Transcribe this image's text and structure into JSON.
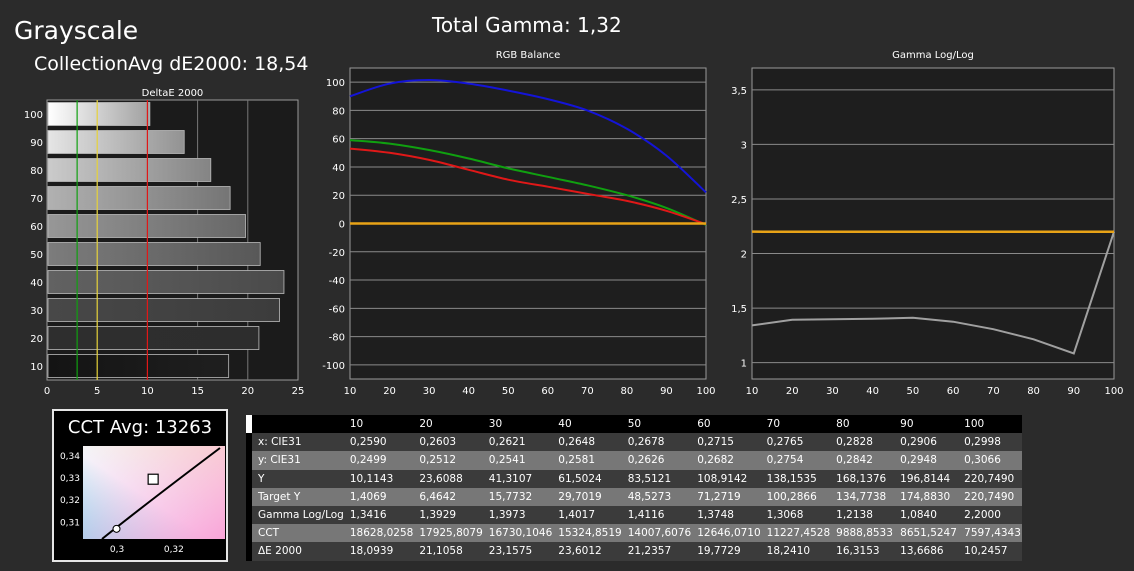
{
  "header": {
    "title": "Grayscale",
    "collection_avg": "CollectionAvg dE2000: 18,54",
    "total_gamma": "Total Gamma: 1,32"
  },
  "colors": {
    "red": "#e01818",
    "green": "#10a010",
    "blue": "#1414d8",
    "orange": "#e8a317",
    "gray_line": "#a0a0a0"
  },
  "chart_data": [
    {
      "type": "bar",
      "orientation": "horizontal",
      "title": "DeltaE 2000",
      "categories": [
        "100",
        "90",
        "80",
        "70",
        "60",
        "50",
        "40",
        "30",
        "20",
        "10"
      ],
      "values": [
        10.2457,
        13.6686,
        16.3153,
        18.241,
        19.7729,
        21.2357,
        23.6012,
        23.1575,
        21.1058,
        18.0939
      ],
      "xlim": [
        0,
        25
      ],
      "x_ticks": [
        "0",
        "5",
        "10",
        "15",
        "20",
        "25"
      ],
      "reference_lines": [
        3,
        5,
        10
      ],
      "grid": true
    },
    {
      "type": "line",
      "title": "RGB Balance",
      "x": [
        10,
        20,
        30,
        40,
        50,
        60,
        70,
        80,
        90,
        100
      ],
      "xlim": [
        10,
        100
      ],
      "ylim": [
        -110,
        110
      ],
      "x_ticks": [
        "10",
        "20",
        "30",
        "40",
        "50",
        "60",
        "70",
        "80",
        "90",
        "100"
      ],
      "y_ticks": [
        "100",
        "80",
        "60",
        "40",
        "20",
        "0",
        "-20",
        "-40",
        "-60",
        "-80",
        "-100"
      ],
      "series": [
        {
          "color": "blue",
          "values": [
            90,
            99,
            101.5,
            99,
            94,
            88,
            80,
            67,
            48,
            22
          ]
        },
        {
          "color": "green",
          "values": [
            59,
            56.5,
            52,
            46,
            39,
            33,
            27,
            20,
            11,
            -1
          ]
        },
        {
          "color": "red",
          "values": [
            53,
            50,
            45,
            38,
            31,
            26,
            21,
            16,
            9,
            -0.5
          ]
        },
        {
          "color": "orange",
          "values": [
            0,
            0,
            0,
            0,
            0,
            0,
            0,
            0,
            0,
            0
          ]
        }
      ],
      "grid": true
    },
    {
      "type": "line",
      "title": "Gamma Log/Log",
      "x": [
        10,
        20,
        30,
        40,
        50,
        60,
        70,
        80,
        90,
        100
      ],
      "xlim": [
        10,
        100
      ],
      "ylim": [
        0.85,
        3.7
      ],
      "x_ticks": [
        "10",
        "20",
        "30",
        "40",
        "50",
        "60",
        "70",
        "80",
        "90",
        "100"
      ],
      "y_ticks": [
        "3,5",
        "3",
        "2,5",
        "2",
        "1,5",
        "1"
      ],
      "series": [
        {
          "color": "gray_line",
          "values": [
            1.3416,
            1.3929,
            1.3973,
            1.4017,
            1.4116,
            1.3748,
            1.3068,
            1.2138,
            1.084,
            2.2
          ]
        },
        {
          "color": "orange",
          "values": [
            2.2,
            2.2,
            2.2,
            2.2,
            2.2,
            2.2,
            2.2,
            2.2,
            2.2,
            2.2
          ]
        }
      ],
      "grid": true
    },
    {
      "type": "scatter",
      "title": "CCT Avg: 13263",
      "xlim": [
        0.288,
        0.338
      ],
      "ylim": [
        0.302,
        0.344
      ],
      "x_ticks": [
        "0,3",
        "0,32"
      ],
      "y_ticks": [
        "0,34",
        "0,33",
        "0,32",
        "0,31"
      ],
      "target_point": {
        "x": 0.3127,
        "y": 0.329
      },
      "measured_point": {
        "x": 0.2998,
        "y": 0.3066
      }
    }
  ],
  "table": {
    "columns": [
      "10",
      "20",
      "30",
      "40",
      "50",
      "60",
      "70",
      "80",
      "90",
      "100"
    ],
    "rows": [
      {
        "label": "x: CIE31",
        "values": [
          "0,2590",
          "0,2603",
          "0,2621",
          "0,2648",
          "0,2678",
          "0,2715",
          "0,2765",
          "0,2828",
          "0,2906",
          "0,2998"
        ]
      },
      {
        "label": "y: CIE31",
        "values": [
          "0,2499",
          "0,2512",
          "0,2541",
          "0,2581",
          "0,2626",
          "0,2682",
          "0,2754",
          "0,2842",
          "0,2948",
          "0,3066"
        ]
      },
      {
        "label": "Y",
        "values": [
          "10,1143",
          "23,6088",
          "41,3107",
          "61,5024",
          "83,5121",
          "108,9142",
          "138,1535",
          "168,1376",
          "196,8144",
          "220,7490"
        ]
      },
      {
        "label": "Target Y",
        "values": [
          "1,4069",
          "6,4642",
          "15,7732",
          "29,7019",
          "48,5273",
          "71,2719",
          "100,2866",
          "134,7738",
          "174,8830",
          "220,7490"
        ]
      },
      {
        "label": "Gamma Log/Log",
        "values": [
          "1,3416",
          "1,3929",
          "1,3973",
          "1,4017",
          "1,4116",
          "1,3748",
          "1,3068",
          "1,2138",
          "1,0840",
          "2,2000"
        ]
      },
      {
        "label": "CCT",
        "values": [
          "18628,0258",
          "17925,8079",
          "16730,1046",
          "15324,8519",
          "14007,6076",
          "12646,0710",
          "11227,4528",
          "9888,8533",
          "8651,5247",
          "7597,4343"
        ]
      },
      {
        "label": "ΔE 2000",
        "values": [
          "18,0939",
          "21,1058",
          "23,1575",
          "23,6012",
          "21,2357",
          "19,7729",
          "18,2410",
          "16,3153",
          "13,6686",
          "10,2457"
        ]
      }
    ]
  }
}
